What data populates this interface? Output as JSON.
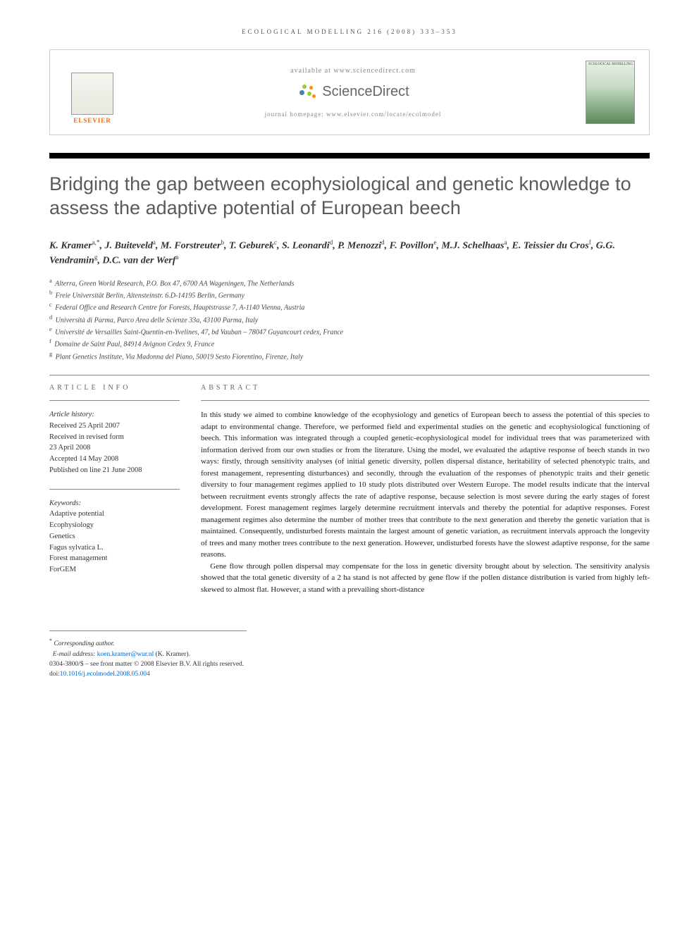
{
  "journal_header": "ECOLOGICAL MODELLING 216 (2008) 333–353",
  "info_box": {
    "elsevier_label": "ELSEVIER",
    "available_text": "available at www.sciencedirect.com",
    "sciencedirect_label": "ScienceDirect",
    "homepage_text": "journal homepage: www.elsevier.com/locate/ecolmodel",
    "cover_title": "ECOLOGICAL MODELLING"
  },
  "article_title": "Bridging the gap between ecophysiological and genetic knowledge to assess the adaptive potential of European beech",
  "authors_html": "K. Kramer<sup>a,*</sup>, J. Buiteveld<sup>a</sup>, M. Forstreuter<sup>b</sup>, T. Geburek<sup>c</sup>, S. Leonardi<sup>d</sup>, P. Menozzi<sup>d</sup>, F. Povillon<sup>e</sup>, M.J. Schelhaas<sup>a</sup>, E. Teissier du Cros<sup>f</sup>, G.G. Vendramin<sup>g</sup>, D.C. van der Werf<sup>a</sup>",
  "affiliations": [
    {
      "sup": "a",
      "text": "Alterra, Green World Research, P.O. Box 47, 6700 AA Wageningen, The Netherlands"
    },
    {
      "sup": "b",
      "text": "Freie Universität Berlin, Altensteinstr. 6.D-14195 Berlin, Germany"
    },
    {
      "sup": "c",
      "text": "Federal Office and Research Centre for Forests, Hauptstrasse 7, A-1140 Vienna, Austria"
    },
    {
      "sup": "d",
      "text": "Università di Parma, Parco Area delle Scienze 33a, 43100 Parma, Italy"
    },
    {
      "sup": "e",
      "text": "Université de Versailles Saint-Quentin-en-Yvelines, 47, bd Vauban – 78047 Guyancourt cedex, France"
    },
    {
      "sup": "f",
      "text": "Domaine de Saint Paul, 84914 Avignon Cedex 9, France"
    },
    {
      "sup": "g",
      "text": "Plant Genetics Institute, Via Madonna del Piano, 50019 Sesto Fiorentino, Firenze, Italy"
    }
  ],
  "article_info": {
    "heading": "ARTICLE INFO",
    "history_title": "Article history:",
    "history": [
      "Received 25 April 2007",
      "Received in revised form",
      "23 April 2008",
      "Accepted 14 May 2008",
      "Published on line 21 June 2008"
    ],
    "keywords_title": "Keywords:",
    "keywords": [
      "Adaptive potential",
      "Ecophysiology",
      "Genetics",
      "Fagus sylvatica L.",
      "Forest management",
      "ForGEM"
    ]
  },
  "abstract": {
    "heading": "ABSTRACT",
    "p1": "In this study we aimed to combine knowledge of the ecophysiology and genetics of European beech to assess the potential of this species to adapt to environmental change. Therefore, we performed field and experimental studies on the genetic and ecophysiological functioning of beech. This information was integrated through a coupled genetic-ecophysiological model for individual trees that was parameterized with information derived from our own studies or from the literature. Using the model, we evaluated the adaptive response of beech stands in two ways: firstly, through sensitivity analyses (of initial genetic diversity, pollen dispersal distance, heritability of selected phenotypic traits, and forest management, representing disturbances) and secondly, through the evaluation of the responses of phenotypic traits and their genetic diversity to four management regimes applied to 10 study plots distributed over Western Europe. The model results indicate that the interval between recruitment events strongly affects the rate of adaptive response, because selection is most severe during the early stages of forest development. Forest management regimes largely determine recruitment intervals and thereby the potential for adaptive responses. Forest management regimes also determine the number of mother trees that contribute to the next generation and thereby the genetic variation that is maintained. Consequently, undisturbed forests maintain the largest amount of genetic variation, as recruitment intervals approach the longevity of trees and many mother trees contribute to the next generation. However, undisturbed forests have the slowest adaptive response, for the same reasons.",
    "p2": "Gene flow through pollen dispersal may compensate for the loss in genetic diversity brought about by selection. The sensitivity analysis showed that the total genetic diversity of a 2 ha stand is not affected by gene flow if the pollen distance distribution is varied from highly left-skewed to almost flat. However, a stand with a prevailing short-distance"
  },
  "footnotes": {
    "corr_label": "* Corresponding author.",
    "email_label": "E-mail address:",
    "email": "koen.kramer@wur.nl",
    "email_person": "(K. Kramer).",
    "copyright": "0304-3800/$ – see front matter © 2008 Elsevier B.V. All rights reserved.",
    "doi_prefix": "doi:",
    "doi": "10.1016/j.ecolmodel.2008.05.004"
  },
  "colors": {
    "elsevier_orange": "#ff6600",
    "title_gray": "#5a5a5a",
    "link_blue": "#0066cc",
    "sd_green": "#9acd32",
    "sd_orange": "#ff8c00",
    "sd_blue": "#4682b4"
  }
}
